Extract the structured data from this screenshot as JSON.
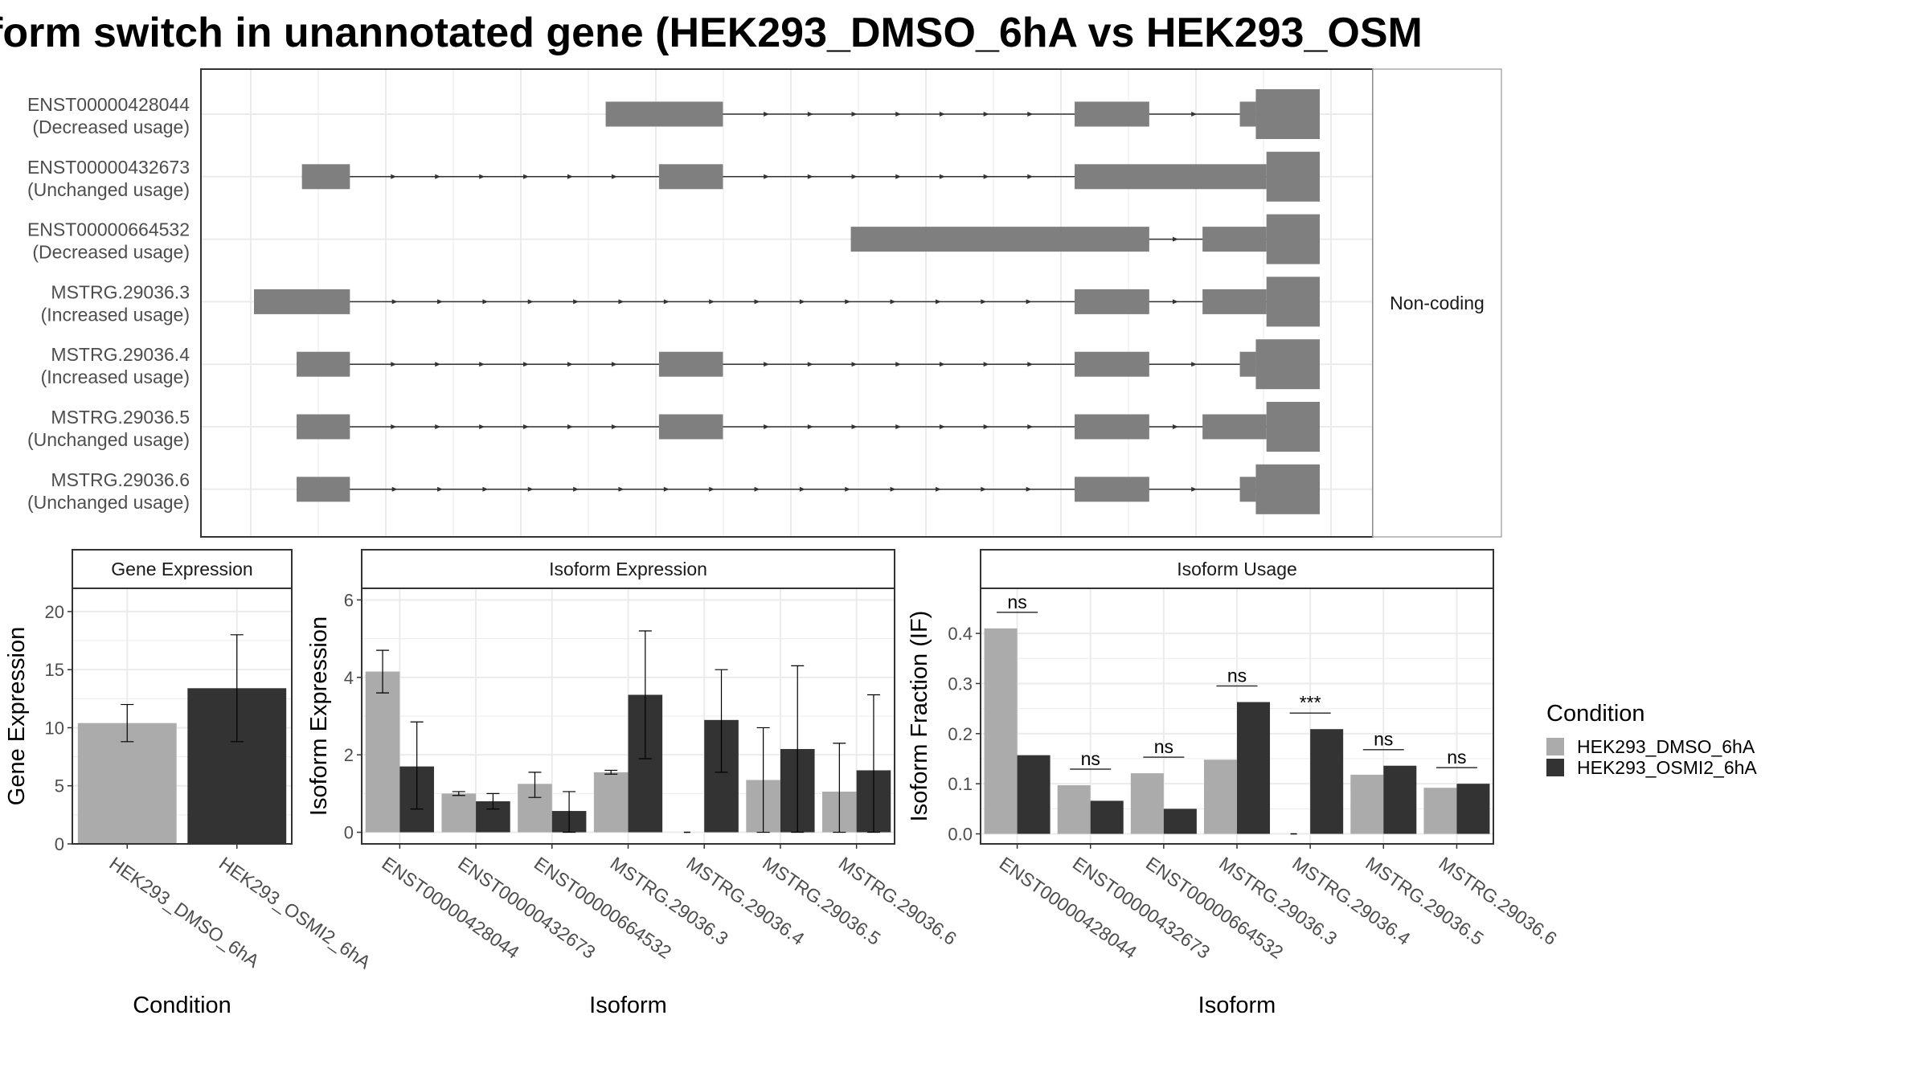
{
  "title": "form switch in unannotated gene (HEK293_DMSO_6hA vs HEK293_OSM",
  "colors": {
    "dmso": "#ababab",
    "osmi": "#333333",
    "transcript": "#7f7f7f",
    "strip": "#ffffff",
    "grid": "#ebebeb"
  },
  "chart_data": [
    {
      "type": "diagram",
      "facet_label": "Non-coding",
      "isoforms": [
        {
          "id": "ENST00000428044",
          "status": "(Decreased usage)",
          "exons": [
            [
              0.33,
              0.44,
              "thin"
            ],
            [
              0.77,
              0.84,
              "thin"
            ],
            [
              0.925,
              0.94,
              "thin"
            ],
            [
              0.94,
              1.0,
              "thick"
            ]
          ]
        },
        {
          "id": "ENST00000432673",
          "status": "(Unchanged usage)",
          "exons": [
            [
              0.045,
              0.09,
              "thin"
            ],
            [
              0.38,
              0.44,
              "thin"
            ],
            [
              0.77,
              0.95,
              "thin"
            ],
            [
              0.95,
              1.0,
              "thick"
            ]
          ]
        },
        {
          "id": "ENST00000664532",
          "status": "(Decreased usage)",
          "exons": [
            [
              0.56,
              0.84,
              "thin"
            ],
            [
              0.89,
              0.95,
              "thin"
            ],
            [
              0.95,
              1.0,
              "thick"
            ]
          ]
        },
        {
          "id": "MSTRG.29036.3",
          "status": "(Increased usage)",
          "exons": [
            [
              0.0,
              0.09,
              "thin"
            ],
            [
              0.77,
              0.84,
              "thin"
            ],
            [
              0.89,
              0.95,
              "thin"
            ],
            [
              0.95,
              1.0,
              "thick"
            ]
          ]
        },
        {
          "id": "MSTRG.29036.4",
          "status": "(Increased usage)",
          "exons": [
            [
              0.04,
              0.09,
              "thin"
            ],
            [
              0.38,
              0.44,
              "thin"
            ],
            [
              0.77,
              0.84,
              "thin"
            ],
            [
              0.925,
              0.94,
              "thin"
            ],
            [
              0.94,
              1.0,
              "thick"
            ]
          ]
        },
        {
          "id": "MSTRG.29036.5",
          "status": "(Unchanged usage)",
          "exons": [
            [
              0.04,
              0.09,
              "thin"
            ],
            [
              0.38,
              0.44,
              "thin"
            ],
            [
              0.77,
              0.84,
              "thin"
            ],
            [
              0.89,
              0.95,
              "thin"
            ],
            [
              0.95,
              1.0,
              "thick"
            ]
          ]
        },
        {
          "id": "MSTRG.29036.6",
          "status": "(Unchanged usage)",
          "exons": [
            [
              0.04,
              0.09,
              "thin"
            ],
            [
              0.77,
              0.84,
              "thin"
            ],
            [
              0.925,
              0.94,
              "thin"
            ],
            [
              0.94,
              1.0,
              "thick"
            ]
          ]
        }
      ]
    },
    {
      "type": "bar",
      "title": "Gene Expression",
      "xlabel": "Condition",
      "ylabel": "Gene Expression",
      "categories": [
        "HEK293_DMSO_6hA",
        "HEK293_OSMI2_6hA"
      ],
      "values": [
        10.4,
        13.4
      ],
      "errors": [
        [
          8.8,
          12.0
        ],
        [
          8.8,
          18.0
        ]
      ],
      "ylim": [
        0,
        22
      ],
      "yticks": [
        "0",
        "5",
        "10",
        "15",
        "20"
      ],
      "ytick_values": [
        0,
        5,
        10,
        15,
        20
      ]
    },
    {
      "type": "bar",
      "title": "Isoform Expression",
      "xlabel": "Isoform",
      "ylabel": "Isoform Expression",
      "categories": [
        "ENST00000428044",
        "ENST00000432673",
        "ENST00000664532",
        "MSTRG.29036.3",
        "MSTRG.29036.4",
        "MSTRG.29036.5",
        "MSTRG.29036.6"
      ],
      "series": [
        {
          "name": "HEK293_DMSO_6hA",
          "values": [
            4.15,
            1.0,
            1.25,
            1.55,
            0.0,
            1.35,
            1.05
          ],
          "errors": [
            [
              3.6,
              4.7
            ],
            [
              0.95,
              1.05
            ],
            [
              0.9,
              1.55
            ],
            [
              1.5,
              1.6
            ],
            [
              0.0,
              0.0
            ],
            [
              0.0,
              2.7
            ],
            [
              0.0,
              2.3
            ]
          ]
        },
        {
          "name": "HEK293_OSMI2_6hA",
          "values": [
            1.7,
            0.8,
            0.55,
            3.55,
            2.9,
            2.15,
            1.6
          ],
          "errors": [
            [
              0.6,
              2.85
            ],
            [
              0.6,
              1.0
            ],
            [
              0.0,
              1.05
            ],
            [
              1.9,
              5.2
            ],
            [
              1.55,
              4.2
            ],
            [
              0.0,
              4.3
            ],
            [
              0.0,
              3.55
            ]
          ]
        }
      ],
      "ylim": [
        -0.3,
        6.3
      ],
      "yticks": [
        "0",
        "2",
        "4",
        "6"
      ],
      "ytick_values": [
        0,
        2,
        4,
        6
      ]
    },
    {
      "type": "bar",
      "title": "Isoform Usage",
      "xlabel": "Isoform",
      "ylabel": "Isoform Fraction (IF)",
      "categories": [
        "ENST00000428044",
        "ENST00000432673",
        "ENST00000664532",
        "MSTRG.29036.3",
        "MSTRG.29036.4",
        "MSTRG.29036.5",
        "MSTRG.29036.6"
      ],
      "series": [
        {
          "name": "HEK293_DMSO_6hA",
          "values": [
            0.41,
            0.097,
            0.121,
            0.148,
            0.0,
            0.118,
            0.092
          ]
        },
        {
          "name": "HEK293_OSMI2_6hA",
          "values": [
            0.157,
            0.066,
            0.05,
            0.263,
            0.209,
            0.136,
            0.1
          ]
        }
      ],
      "significance": [
        "ns",
        "ns",
        "ns",
        "ns",
        "***",
        "ns",
        "ns"
      ],
      "ylim": [
        -0.02,
        0.49
      ],
      "yticks": [
        "0.0",
        "0.1",
        "0.2",
        "0.3",
        "0.4"
      ],
      "ytick_values": [
        0,
        0.1,
        0.2,
        0.3,
        0.4
      ]
    }
  ],
  "legend": {
    "title": "Condition",
    "entries": [
      "HEK293_DMSO_6hA",
      "HEK293_OSMI2_6hA"
    ],
    "position": "right"
  }
}
